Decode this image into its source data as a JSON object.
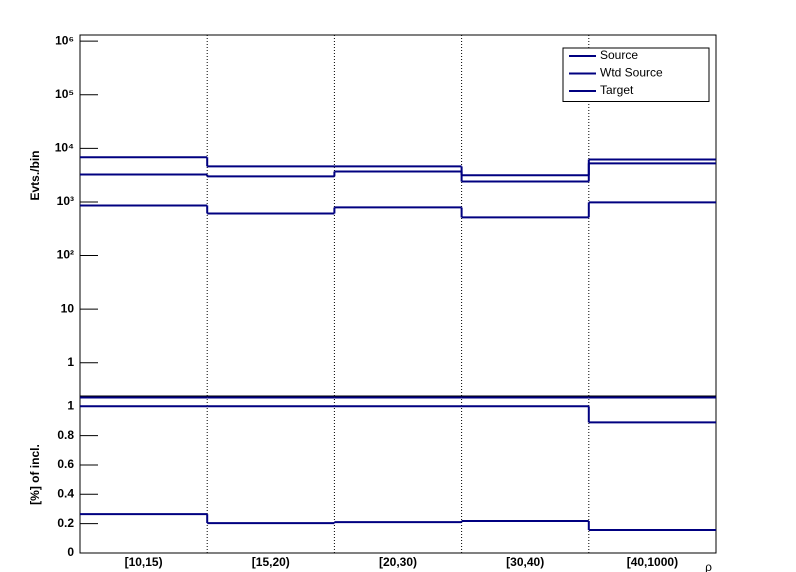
{
  "chart_data": [
    {
      "type": "step",
      "ylabel": "Evts./bin",
      "log_y": true,
      "legend": "top-right",
      "ylim": [
        0.24,
        1300000
      ],
      "yticks": [
        1,
        10,
        {
          "value": 100,
          "label": "10²"
        },
        {
          "value": 1000,
          "label": "10³"
        },
        {
          "value": 10000,
          "label": "10⁴"
        },
        {
          "value": 100000,
          "label": "10⁵"
        },
        {
          "value": 1000000,
          "label": "10⁶"
        }
      ],
      "series": [
        {
          "name": "Source",
          "color": "#000080",
          "values": [
            6800,
            4600,
            4600,
            3150,
            6200
          ]
        },
        {
          "name": "Wtd Source",
          "color": "#000080",
          "values": [
            3250,
            3000,
            3700,
            2400,
            5250
          ]
        },
        {
          "name": "Target",
          "color": "#000080",
          "values": [
            860,
            610,
            790,
            515,
            980
          ]
        }
      ]
    },
    {
      "type": "step",
      "ylabel": "[%] of incl.",
      "xlabel": "ρ",
      "categories": [
        "[10,15)",
        "[15,20)",
        "[20,30)",
        "[30,40)",
        "[40,1000)"
      ],
      "ylim": [
        0,
        1.07
      ],
      "yticks": [
        0,
        0.2,
        0.4,
        0.6,
        0.8,
        1
      ],
      "series": [
        {
          "color": "#000080",
          "values": [
            1.06,
            1.06,
            1.06,
            1.06,
            1.06
          ]
        },
        {
          "color": "#000080",
          "values": [
            1,
            1,
            1,
            1,
            0.89
          ]
        },
        {
          "color": "#000080",
          "values": [
            0.265,
            0.204,
            0.21,
            0.218,
            0.157
          ]
        }
      ]
    }
  ]
}
